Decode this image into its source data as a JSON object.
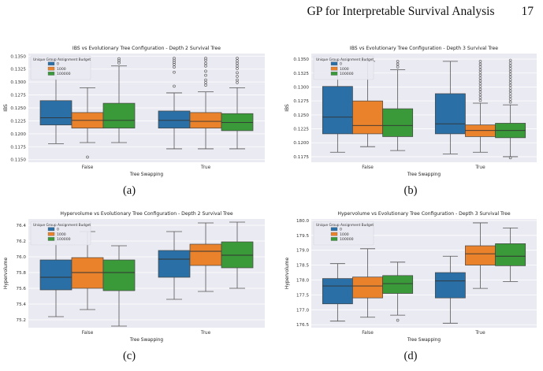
{
  "header": {
    "title": "GP for Interpretable Survival Analysis",
    "page": "17"
  },
  "panels": [
    {
      "caption": "(a)"
    },
    {
      "caption": "(b)"
    },
    {
      "caption": "(c)"
    },
    {
      "caption": "(d)"
    }
  ],
  "colors": {
    "0": "#2a6fa5",
    "1000": "#e9822b",
    "100000": "#3a9a3a",
    "plot_bg": "#eaeaf2",
    "grid": "#ffffff"
  },
  "chart_data": [
    {
      "type": "box",
      "title": "IBS vs Evolutionary Tree Configuration - Depth 2 Survival Tree",
      "xlabel": "Tree Swapping",
      "ylabel": "IBS",
      "categories": [
        "False",
        "True"
      ],
      "ylim": [
        0.1145,
        0.1355
      ],
      "yticks": [
        "0.1150",
        "0.1175",
        "0.1200",
        "0.1225",
        "0.1250",
        "0.1275",
        "0.1300",
        "0.1325",
        "0.1350"
      ],
      "legend": {
        "title": "Unique Group Assignment Budget",
        "entries": [
          "0",
          "1000",
          "100000"
        ],
        "position": "top-left"
      },
      "series": [
        {
          "name": "0",
          "boxes": [
            {
              "whislo": 0.1181,
              "q1": 0.1217,
              "med": 0.1231,
              "q3": 0.1264,
              "whishi": 0.1346,
              "fliers": []
            },
            {
              "whislo": 0.1171,
              "q1": 0.1211,
              "med": 0.1226,
              "q3": 0.1244,
              "whishi": 0.1279,
              "fliers": [
                0.1292,
                0.1319,
                0.1329,
                0.1334,
                0.1338,
                0.1342,
                0.1346
              ]
            }
          ]
        },
        {
          "name": "1000",
          "boxes": [
            {
              "whislo": 0.1183,
              "q1": 0.1211,
              "med": 0.1226,
              "q3": 0.1241,
              "whishi": 0.1289,
              "fliers": [
                0.1155
              ]
            },
            {
              "whislo": 0.1171,
              "q1": 0.1211,
              "med": 0.1224,
              "q3": 0.1241,
              "whishi": 0.1281,
              "fliers": [
                0.1294,
                0.1299,
                0.1304,
                0.1313,
                0.1321,
                0.1331,
                0.1336,
                0.1342,
                0.1346
              ]
            }
          ]
        },
        {
          "name": "100000",
          "boxes": [
            {
              "whislo": 0.1183,
              "q1": 0.1211,
              "med": 0.1226,
              "q3": 0.1259,
              "whishi": 0.1331,
              "fliers": [
                0.1337,
                0.1341,
                0.1345
              ]
            },
            {
              "whislo": 0.1171,
              "q1": 0.1206,
              "med": 0.1222,
              "q3": 0.1239,
              "whishi": 0.1289,
              "fliers": [
                0.1299,
                0.1304,
                0.1311,
                0.1318,
                0.1326,
                0.1331,
                0.1336,
                0.1341,
                0.1346
              ]
            }
          ]
        }
      ]
    },
    {
      "type": "box",
      "title": "IBS vs Evolutionary Tree Configuration - Depth 3 Survival Tree",
      "xlabel": "Tree Swapping",
      "ylabel": "IBS",
      "categories": [
        "False",
        "True"
      ],
      "ylim": [
        0.1165,
        0.136
      ],
      "yticks": [
        "0.1175",
        "0.1200",
        "0.1225",
        "0.1250",
        "0.1275",
        "0.1300",
        "0.1325",
        "0.1350"
      ],
      "legend": {
        "title": "Unique Group Assignment Budget",
        "entries": [
          "0",
          "1000",
          "100000"
        ],
        "position": "top-left"
      },
      "series": [
        {
          "name": "0",
          "boxes": [
            {
              "whislo": 0.1183,
              "q1": 0.1216,
              "med": 0.1246,
              "q3": 0.1301,
              "whishi": 0.1346,
              "fliers": []
            },
            {
              "whislo": 0.118,
              "q1": 0.1216,
              "med": 0.1234,
              "q3": 0.1288,
              "whishi": 0.1346,
              "fliers": []
            }
          ]
        },
        {
          "name": "1000",
          "boxes": [
            {
              "whislo": 0.1193,
              "q1": 0.1216,
              "med": 0.1231,
              "q3": 0.1275,
              "whishi": 0.1346,
              "fliers": []
            },
            {
              "whislo": 0.1183,
              "q1": 0.1211,
              "med": 0.1222,
              "q3": 0.1232,
              "whishi": 0.1271,
              "fliers": [
                0.1276,
                0.1281,
                0.1286,
                0.1291,
                0.1296,
                0.1301,
                0.1306,
                0.1311,
                0.1316,
                0.1321,
                0.1326,
                0.1331,
                0.1336,
                0.1341,
                0.1346
              ]
            }
          ]
        },
        {
          "name": "100000",
          "boxes": [
            {
              "whislo": 0.1186,
              "q1": 0.1211,
              "med": 0.1231,
              "q3": 0.1261,
              "whishi": 0.1331,
              "fliers": [
                0.1336,
                0.1341,
                0.1346
              ]
            },
            {
              "whislo": 0.1175,
              "q1": 0.1209,
              "med": 0.1222,
              "q3": 0.1235,
              "whishi": 0.1268,
              "fliers": [
                0.1173,
                0.1273,
                0.1278,
                0.1283,
                0.1288,
                0.1293,
                0.1298,
                0.1303,
                0.1308,
                0.1313,
                0.1318,
                0.1323,
                0.1328,
                0.1333,
                0.1338,
                0.1343,
                0.1348
              ]
            }
          ]
        }
      ]
    },
    {
      "type": "box",
      "title": "Hypervolume vs Evolutionary Tree Configuration - Depth 2 Survival Tree",
      "xlabel": "Tree Swapping",
      "ylabel": "Hypervolume",
      "categories": [
        "False",
        "True"
      ],
      "ylim": [
        75.1,
        76.48
      ],
      "yticks": [
        "75.2",
        "75.4",
        "75.6",
        "75.8",
        "76.0",
        "76.2",
        "76.4"
      ],
      "legend": {
        "title": "Unique Group Assignment Budget",
        "entries": [
          "0",
          "1000",
          "100000"
        ],
        "position": "top-left"
      },
      "series": [
        {
          "name": "0",
          "boxes": [
            {
              "whislo": 75.24,
              "q1": 75.58,
              "med": 75.74,
              "q3": 75.96,
              "whishi": 76.3,
              "fliers": []
            },
            {
              "whislo": 75.46,
              "q1": 75.74,
              "med": 75.97,
              "q3": 76.08,
              "whishi": 76.32,
              "fliers": []
            }
          ]
        },
        {
          "name": "1000",
          "boxes": [
            {
              "whislo": 75.33,
              "q1": 75.6,
              "med": 75.8,
              "q3": 75.99,
              "whishi": 76.32,
              "fliers": []
            },
            {
              "whislo": 75.56,
              "q1": 75.89,
              "med": 76.07,
              "q3": 76.16,
              "whishi": 76.43,
              "fliers": []
            }
          ]
        },
        {
          "name": "100000",
          "boxes": [
            {
              "whislo": 75.12,
              "q1": 75.57,
              "med": 75.8,
              "q3": 75.96,
              "whishi": 76.14,
              "fliers": []
            },
            {
              "whislo": 75.6,
              "q1": 75.86,
              "med": 76.02,
              "q3": 76.19,
              "whishi": 76.44,
              "fliers": []
            }
          ]
        }
      ]
    },
    {
      "type": "box",
      "title": "Hypervolume vs Evolutionary Tree Configuration - Depth 3 Survival Tree",
      "xlabel": "Tree Swapping",
      "ylabel": "Hypervolume",
      "categories": [
        "False",
        "True"
      ],
      "ylim": [
        176.4,
        180.05
      ],
      "yticks": [
        "176.5",
        "177.0",
        "177.5",
        "178.0",
        "178.5",
        "179.0",
        "179.5",
        "180.0"
      ],
      "legend": {
        "title": "Unique Group Assignment Budget",
        "entries": [
          "0",
          "1000",
          "100000"
        ],
        "position": "top-left"
      },
      "series": [
        {
          "name": "0",
          "boxes": [
            {
              "whislo": 176.62,
              "q1": 177.2,
              "med": 177.8,
              "q3": 178.05,
              "whishi": 178.55,
              "fliers": []
            },
            {
              "whislo": 176.55,
              "q1": 177.4,
              "med": 177.97,
              "q3": 178.25,
              "whishi": 178.8,
              "fliers": []
            }
          ]
        },
        {
          "name": "1000",
          "boxes": [
            {
              "whislo": 176.75,
              "q1": 177.4,
              "med": 177.8,
              "q3": 178.1,
              "whishi": 179.05,
              "fliers": []
            },
            {
              "whislo": 177.72,
              "q1": 178.5,
              "med": 178.88,
              "q3": 179.15,
              "whishi": 179.92,
              "fliers": []
            }
          ]
        },
        {
          "name": "100000",
          "boxes": [
            {
              "whislo": 176.82,
              "q1": 177.55,
              "med": 177.88,
              "q3": 178.15,
              "whishi": 178.6,
              "fliers": [
                176.65
              ]
            },
            {
              "whislo": 177.95,
              "q1": 178.48,
              "med": 178.8,
              "q3": 179.22,
              "whishi": 179.75,
              "fliers": []
            }
          ]
        }
      ]
    }
  ]
}
